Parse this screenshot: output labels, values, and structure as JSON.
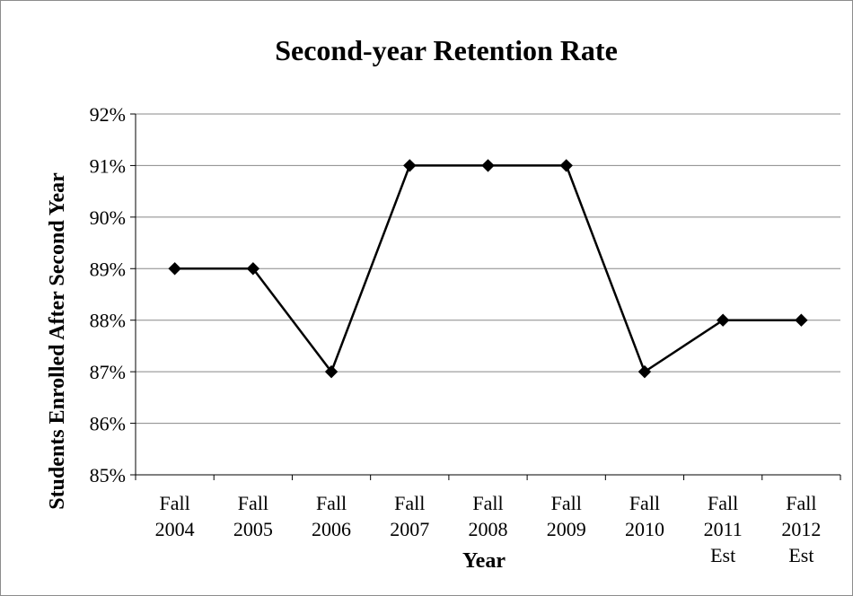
{
  "chart_data": {
    "type": "line",
    "title": "Second-year Retention Rate",
    "xlabel": "Year",
    "ylabel": "Students Enrolled After Second Year",
    "categories": [
      [
        "Fall",
        "2004"
      ],
      [
        "Fall",
        "2005"
      ],
      [
        "Fall",
        "2006"
      ],
      [
        "Fall",
        "2007"
      ],
      [
        "Fall",
        "2008"
      ],
      [
        "Fall",
        "2009"
      ],
      [
        "Fall",
        "2010"
      ],
      [
        "Fall",
        "2011",
        "Est"
      ],
      [
        "Fall",
        "2012",
        "Est"
      ]
    ],
    "values": [
      0.89,
      0.89,
      0.87,
      0.91,
      0.91,
      0.91,
      0.87,
      0.88,
      0.88
    ],
    "ylim": [
      0.85,
      0.92
    ],
    "yticks": [
      "85%",
      "86%",
      "87%",
      "88%",
      "89%",
      "90%",
      "91%",
      "92%"
    ],
    "grid": "horizontal",
    "legend": "none",
    "colors": {
      "line": "#000000",
      "grid": "#888888",
      "text": "#000000"
    }
  }
}
